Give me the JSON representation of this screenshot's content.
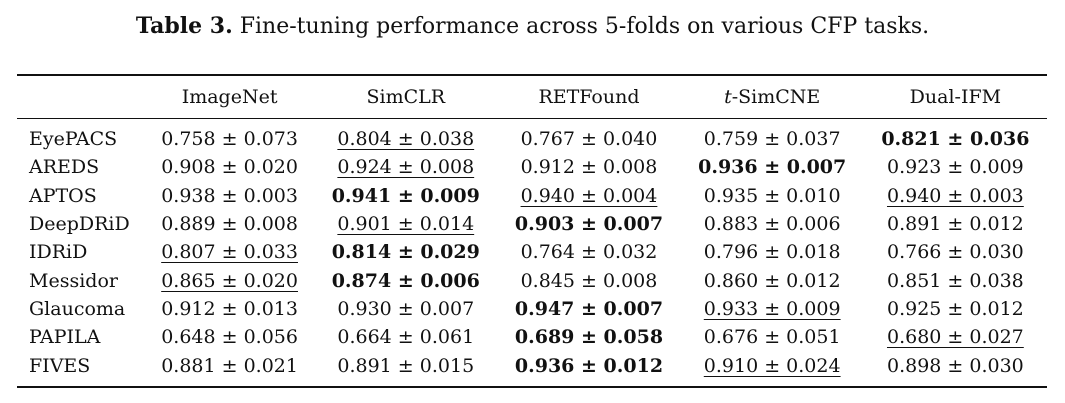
{
  "caption": {
    "label": "Table 3.",
    "text": " Fine-tuning performance across 5-folds on various CFP tasks."
  },
  "table": {
    "columns": [
      {
        "prefix": "",
        "name": "ImageNet"
      },
      {
        "prefix": "",
        "name": "SimCLR"
      },
      {
        "prefix": "",
        "name": "RETFound"
      },
      {
        "prefix": "t",
        "name": "-SimCNE"
      },
      {
        "prefix": "",
        "name": "Dual-IFM"
      }
    ],
    "rows": [
      {
        "name": "EyePACS",
        "cells": [
          {
            "text": "0.758 ± 0.073",
            "bold": false,
            "underline": false
          },
          {
            "text": "0.804 ± 0.038",
            "bold": false,
            "underline": true
          },
          {
            "text": "0.767 ± 0.040",
            "bold": false,
            "underline": false
          },
          {
            "text": "0.759 ± 0.037",
            "bold": false,
            "underline": false
          },
          {
            "text": "0.821 ± 0.036",
            "bold": true,
            "underline": false
          }
        ]
      },
      {
        "name": "AREDS",
        "cells": [
          {
            "text": "0.908 ± 0.020",
            "bold": false,
            "underline": false
          },
          {
            "text": "0.924 ± 0.008",
            "bold": false,
            "underline": true
          },
          {
            "text": "0.912 ± 0.008",
            "bold": false,
            "underline": false
          },
          {
            "text": "0.936 ± 0.007",
            "bold": true,
            "underline": false
          },
          {
            "text": "0.923 ± 0.009",
            "bold": false,
            "underline": false
          }
        ]
      },
      {
        "name": "APTOS",
        "cells": [
          {
            "text": "0.938 ± 0.003",
            "bold": false,
            "underline": false
          },
          {
            "text": "0.941 ± 0.009",
            "bold": true,
            "underline": false
          },
          {
            "text": "0.940 ± 0.004",
            "bold": false,
            "underline": true
          },
          {
            "text": "0.935 ± 0.010",
            "bold": false,
            "underline": false
          },
          {
            "text": "0.940 ± 0.003",
            "bold": false,
            "underline": true
          }
        ]
      },
      {
        "name": "DeepDRiD",
        "cells": [
          {
            "text": "0.889 ± 0.008",
            "bold": false,
            "underline": false
          },
          {
            "text": "0.901 ± 0.014",
            "bold": false,
            "underline": true
          },
          {
            "text": "0.903 ± 0.007",
            "bold": true,
            "underline": false
          },
          {
            "text": "0.883 ± 0.006",
            "bold": false,
            "underline": false
          },
          {
            "text": "0.891 ± 0.012",
            "bold": false,
            "underline": false
          }
        ]
      },
      {
        "name": "IDRiD",
        "cells": [
          {
            "text": "0.807 ± 0.033",
            "bold": false,
            "underline": true
          },
          {
            "text": "0.814 ± 0.029",
            "bold": true,
            "underline": false
          },
          {
            "text": "0.764 ± 0.032",
            "bold": false,
            "underline": false
          },
          {
            "text": "0.796 ± 0.018",
            "bold": false,
            "underline": false
          },
          {
            "text": "0.766 ± 0.030",
            "bold": false,
            "underline": false
          }
        ]
      },
      {
        "name": "Messidor",
        "cells": [
          {
            "text": "0.865 ± 0.020",
            "bold": false,
            "underline": true
          },
          {
            "text": "0.874 ± 0.006",
            "bold": true,
            "underline": false
          },
          {
            "text": "0.845 ± 0.008",
            "bold": false,
            "underline": false
          },
          {
            "text": "0.860 ± 0.012",
            "bold": false,
            "underline": false
          },
          {
            "text": "0.851 ± 0.038",
            "bold": false,
            "underline": false
          }
        ]
      },
      {
        "name": "Glaucoma",
        "cells": [
          {
            "text": "0.912 ± 0.013",
            "bold": false,
            "underline": false
          },
          {
            "text": "0.930 ± 0.007",
            "bold": false,
            "underline": false
          },
          {
            "text": "0.947 ± 0.007",
            "bold": true,
            "underline": false
          },
          {
            "text": "0.933 ± 0.009",
            "bold": false,
            "underline": true
          },
          {
            "text": "0.925 ± 0.012",
            "bold": false,
            "underline": false
          }
        ]
      },
      {
        "name": "PAPILA",
        "cells": [
          {
            "text": "0.648 ± 0.056",
            "bold": false,
            "underline": false
          },
          {
            "text": "0.664 ± 0.061",
            "bold": false,
            "underline": false
          },
          {
            "text": "0.689 ± 0.058",
            "bold": true,
            "underline": false
          },
          {
            "text": "0.676 ± 0.051",
            "bold": false,
            "underline": false
          },
          {
            "text": "0.680 ± 0.027",
            "bold": false,
            "underline": true
          }
        ]
      },
      {
        "name": "FIVES",
        "cells": [
          {
            "text": "0.881 ± 0.021",
            "bold": false,
            "underline": false
          },
          {
            "text": "0.891 ± 0.015",
            "bold": false,
            "underline": false
          },
          {
            "text": "0.936 ± 0.012",
            "bold": true,
            "underline": false
          },
          {
            "text": "0.910 ± 0.024",
            "bold": false,
            "underline": true
          },
          {
            "text": "0.898 ± 0.030",
            "bold": false,
            "underline": false
          }
        ]
      }
    ]
  }
}
